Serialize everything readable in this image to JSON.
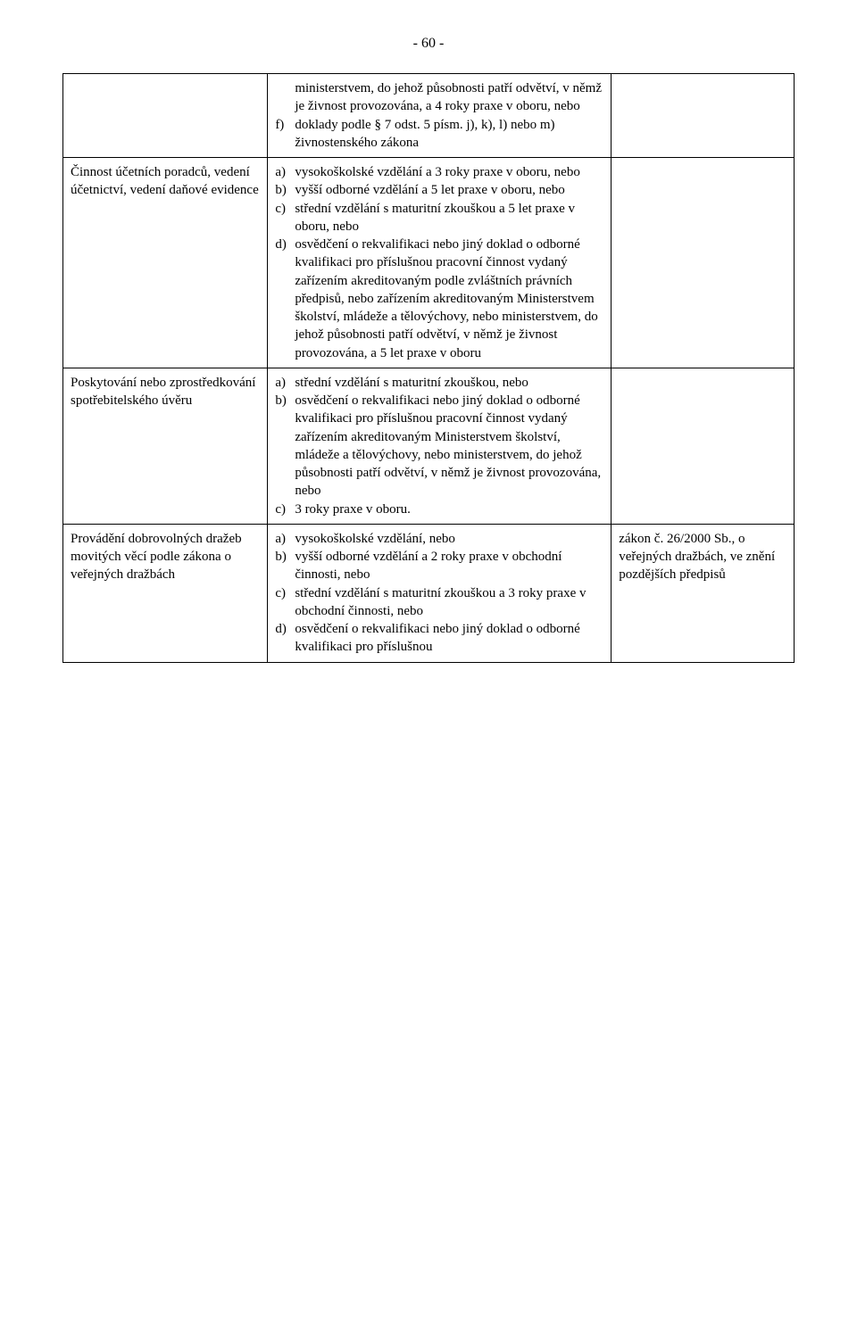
{
  "page_number": "- 60 -",
  "rows": [
    {
      "col1": "",
      "col2": {
        "prefix": "",
        "items": [
          {
            "marker": "",
            "text": "ministerstvem, do jehož působnosti patří odvětví, v němž je živnost provozována, a 4 roky praxe v oboru, nebo",
            "indent": true
          },
          {
            "marker": "f)",
            "text": "doklady podle § 7 odst. 5 písm. j), k), l) nebo m) živnostenského zákona"
          }
        ]
      },
      "col3": ""
    },
    {
      "col1": "Činnost účetních poradců, vedení účetnictví, vedení daňové evidence",
      "col2": {
        "prefix": "",
        "items": [
          {
            "marker": "a)",
            "text": "vysokoškolské vzdělání a 3 roky praxe v oboru, nebo"
          },
          {
            "marker": "b)",
            "text": "vyšší odborné vzdělání a 5 let praxe v oboru, nebo"
          },
          {
            "marker": "c)",
            "text": "střední vzdělání s maturitní zkouškou a 5 let praxe v oboru, nebo"
          },
          {
            "marker": "d)",
            "text": "osvědčení o rekvalifikaci nebo jiný doklad o odborné kvalifikaci pro příslušnou pracovní činnost vydaný zařízením akreditovaným podle zvláštních právních předpisů, nebo zařízením akreditovaným Ministerstvem školství, mládeže a tělovýchovy, nebo ministerstvem, do jehož působnosti patří odvětví, v němž je živnost provozována, a 5 let praxe v oboru"
          }
        ]
      },
      "col3": ""
    },
    {
      "col1": "Poskytování nebo zprostředkování spotřebitelského úvěru",
      "col2": {
        "prefix": "",
        "items": [
          {
            "marker": "a)",
            "text": "střední vzdělání s maturitní zkouškou, nebo"
          },
          {
            "marker": "b)",
            "text": "osvědčení o rekvalifikaci nebo jiný doklad o odborné kvalifikaci pro příslušnou pracovní činnost vydaný zařízením akreditovaným Ministerstvem školství, mládeže a tělovýchovy, nebo ministerstvem, do jehož působnosti patří odvětví, v němž je živnost provozována, nebo"
          },
          {
            "marker": "c)",
            "text": "3 roky praxe v oboru."
          }
        ]
      },
      "col3": ""
    },
    {
      "col1": "Provádění dobrovolných dražeb movitých věcí podle zákona o veřejných dražbách",
      "col2": {
        "prefix": "",
        "items": [
          {
            "marker": "a)",
            "text": "vysokoškolské vzdělání, nebo"
          },
          {
            "marker": "b)",
            "text": "vyšší odborné vzdělání a 2 roky praxe v obchodní činnosti, nebo"
          },
          {
            "marker": "c)",
            "text": "střední vzdělání s maturitní zkouškou a 3 roky praxe v obchodní činnosti, nebo"
          },
          {
            "marker": "d)",
            "text": "osvědčení o rekvalifikaci nebo jiný doklad o odborné kvalifikaci pro příslušnou"
          }
        ]
      },
      "col3": "zákon č. 26/2000 Sb., o veřejných dražbách, ve znění pozdějších předpisů"
    }
  ]
}
